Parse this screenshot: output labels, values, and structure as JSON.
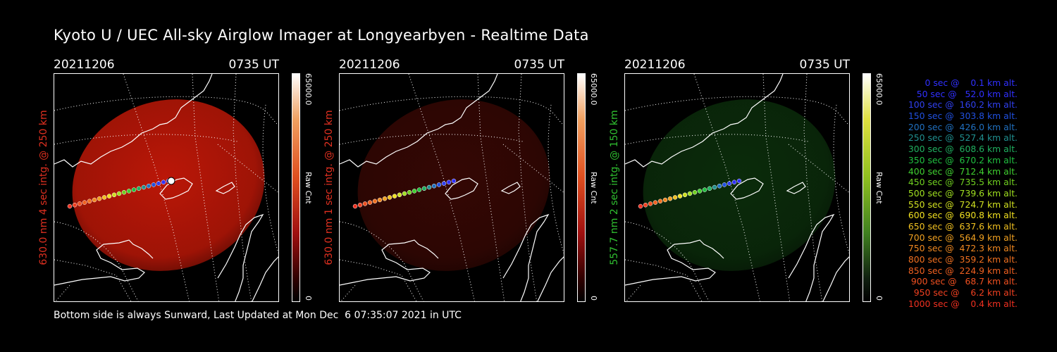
{
  "title": "Kyoto U / UEC All-sky Airglow Imager at Longyearbyen - Realtime Data",
  "footer": "Bottom side is always Sunward, Last Updated at Mon Dec  6 07:35:07 2021 in UTC",
  "panels": [
    {
      "date": "20211206",
      "time": "0735 UT",
      "ylabel": "630.0 nm 4 sec intg. @ 250 km",
      "label_color": "#e03020",
      "cbar_max": "65000.0",
      "cbar_min": "0",
      "cbar_unit": "Raw Cnt",
      "glow_color": "#c41808",
      "glow_intensity": 0.95
    },
    {
      "date": "20211206",
      "time": "0735 UT",
      "ylabel": "630.0 nm 1 sec intg. @ 250 km",
      "label_color": "#e03020",
      "cbar_max": "65000.0",
      "cbar_min": "0",
      "cbar_unit": "Raw Cnt",
      "glow_color": "#3a0804",
      "glow_intensity": 0.9
    },
    {
      "date": "20211206",
      "time": "0735 UT",
      "ylabel": "557.7 nm 2 sec intg. @ 150 km",
      "label_color": "#30c030",
      "cbar_max": "65000.0",
      "cbar_min": "0",
      "cbar_unit": "Raw Cnt",
      "glow_color": "#0c300c",
      "glow_intensity": 0.9
    }
  ],
  "legend": [
    {
      "text": "   0 sec @    0.1 km alt.",
      "color": "#3030ff"
    },
    {
      "text": "  50 sec @   52.0 km alt.",
      "color": "#3030ff"
    },
    {
      "text": " 100 sec @  160.2 km alt.",
      "color": "#3040f0"
    },
    {
      "text": " 150 sec @  303.8 km alt.",
      "color": "#2050e0"
    },
    {
      "text": " 200 sec @  426.0 km alt.",
      "color": "#2070c0"
    },
    {
      "text": " 250 sec @  527.4 km alt.",
      "color": "#209090"
    },
    {
      "text": " 300 sec @  608.6 km alt.",
      "color": "#20b060"
    },
    {
      "text": " 350 sec @  670.2 km alt.",
      "color": "#20c040"
    },
    {
      "text": " 400 sec @  712.4 km alt.",
      "color": "#40d030"
    },
    {
      "text": " 450 sec @  735.5 km alt.",
      "color": "#70d020"
    },
    {
      "text": " 500 sec @  739.6 km alt.",
      "color": "#a0e020"
    },
    {
      "text": " 550 sec @  724.7 km alt.",
      "color": "#d0e020"
    },
    {
      "text": " 600 sec @  690.8 km alt.",
      "color": "#f0e020"
    },
    {
      "text": " 650 sec @  637.6 km alt.",
      "color": "#f0c020"
    },
    {
      "text": " 700 sec @  564.9 km alt.",
      "color": "#f0a020"
    },
    {
      "text": " 750 sec @  472.3 km alt.",
      "color": "#f08820"
    },
    {
      "text": " 800 sec @  359.2 km alt.",
      "color": "#f07020"
    },
    {
      "text": " 850 sec @  224.9 km alt.",
      "color": "#f06020"
    },
    {
      "text": " 900 sec @   68.7 km alt.",
      "color": "#f05020"
    },
    {
      "text": " 950 sec @    6.2 km alt.",
      "color": "#f04020"
    },
    {
      "text": "1000 sec @    0.4 km alt.",
      "color": "#f03020"
    }
  ]
}
